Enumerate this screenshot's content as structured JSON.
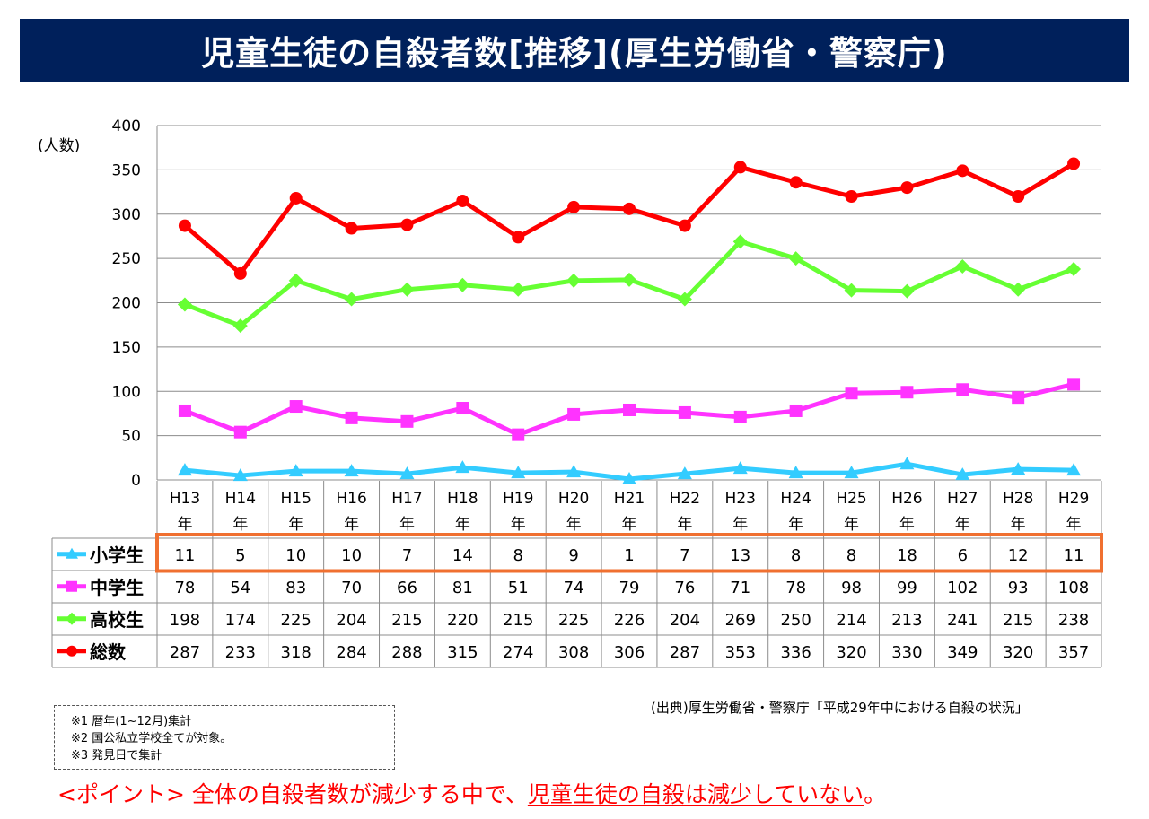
{
  "header": {
    "title": "児童生徒の自殺者数[推移](厚生労働省・警察庁)"
  },
  "chart_data": {
    "type": "line",
    "title": "",
    "ylabel": "(人数)",
    "xlabel": "",
    "ylim": [
      0,
      400
    ],
    "yticks": [
      0,
      50,
      100,
      150,
      200,
      250,
      300,
      350,
      400
    ],
    "grid": true,
    "categories": [
      "H13",
      "H14",
      "H15",
      "H16",
      "H17",
      "H18",
      "H19",
      "H20",
      "H21",
      "H22",
      "H23",
      "H24",
      "H25",
      "H26",
      "H27",
      "H28",
      "H29"
    ],
    "category_suffix": "年",
    "series": [
      {
        "name": "小学生",
        "color": "#33ccff",
        "marker": "triangle",
        "values": [
          11,
          5,
          10,
          10,
          7,
          14,
          8,
          9,
          1,
          7,
          13,
          8,
          8,
          18,
          6,
          12,
          11
        ]
      },
      {
        "name": "中学生",
        "color": "#ff33ff",
        "marker": "square",
        "values": [
          78,
          54,
          83,
          70,
          66,
          81,
          51,
          74,
          79,
          76,
          71,
          78,
          98,
          99,
          102,
          93,
          108
        ]
      },
      {
        "name": "高校生",
        "color": "#66ff33",
        "marker": "diamond",
        "values": [
          198,
          174,
          225,
          204,
          215,
          220,
          215,
          225,
          226,
          204,
          269,
          250,
          214,
          213,
          241,
          215,
          238
        ]
      },
      {
        "name": "総数",
        "color": "#ff0000",
        "marker": "circle",
        "values": [
          287,
          233,
          318,
          284,
          288,
          315,
          274,
          308,
          306,
          287,
          353,
          336,
          320,
          330,
          349,
          320,
          357
        ]
      }
    ],
    "highlight_row": "小学生",
    "highlight_color": "#f07030",
    "legend": "data-table-left"
  },
  "source": "(出典)厚生労働省・警察庁「平成29年中における自殺の状況」",
  "notes": [
    "※1  暦年(1~12月)集計",
    "※2  国公私立学校全てが対象。",
    "※3  発見日で集計"
  ],
  "point": {
    "prefix": "<ポイント>  全体の自殺者数が減少する中で、",
    "highlight": "児童生徒の自殺は減少していない",
    "suffix": "。"
  }
}
